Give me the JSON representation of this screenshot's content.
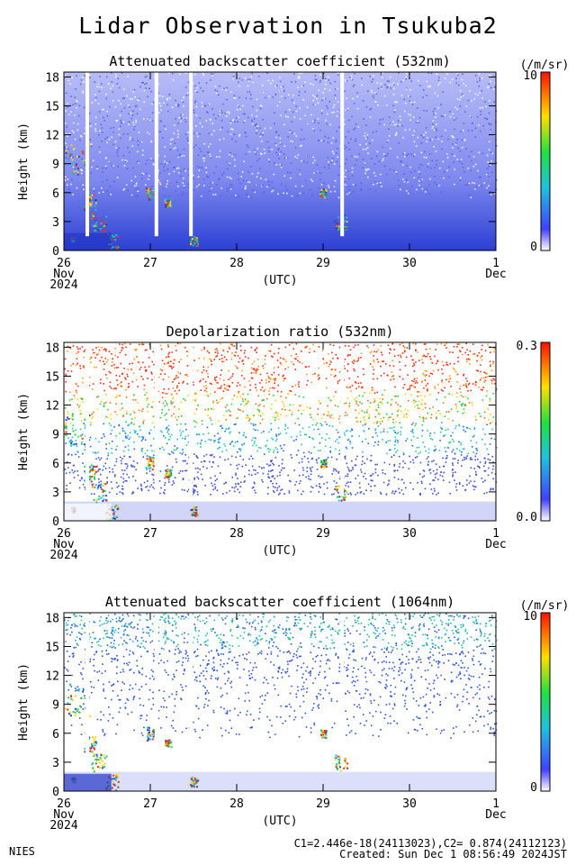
{
  "page": {
    "title": "Lidar Observation in Tsukuba2",
    "footer_org": "NIES",
    "footer_constants": "C1=2.446e-18(24113023),C2= 0.874(24112123)",
    "footer_created": "Created: Sun Dec  1 08:56:49 2024JST"
  },
  "chart_data": [
    {
      "type": "heatmap",
      "title": "Attenuated backscatter coefficient (532nm)",
      "xlabel": "(UTC)",
      "ylabel": "Height (km)",
      "x_ticks": [
        "26",
        "27",
        "28",
        "29",
        "30",
        "1"
      ],
      "x_sublabels": {
        "start_month": "Nov",
        "start_year": "2024",
        "end_month": "Dec"
      },
      "xlim": [
        "2024-11-26",
        "2024-12-01"
      ],
      "y_ticks": [
        0,
        3,
        6,
        9,
        12,
        15,
        18
      ],
      "ylim": [
        0,
        18.5
      ],
      "colorbar": {
        "label": "(/m/sr)",
        "min": "0",
        "max": "10",
        "scale": "log"
      },
      "colors": {
        "background": "#8c95f0",
        "clear": "#ffffff",
        "haze": "#3a4fd9",
        "cloud": "#ff2a10"
      }
    },
    {
      "type": "heatmap",
      "title": "Depolarization ratio (532nm)",
      "xlabel": "(UTC)",
      "ylabel": "Height (km)",
      "x_ticks": [
        "26",
        "27",
        "28",
        "29",
        "30",
        "1"
      ],
      "x_sublabels": {
        "start_month": "Nov",
        "start_year": "2024",
        "end_month": "Dec"
      },
      "xlim": [
        "2024-11-26",
        "2024-12-01"
      ],
      "y_ticks": [
        0,
        3,
        6,
        9,
        12,
        15,
        18
      ],
      "ylim": [
        0,
        18.5
      ],
      "colorbar": {
        "label": "",
        "min": "0.0",
        "max": "0.3",
        "scale": "linear"
      },
      "colors": {
        "background": "#ffffff",
        "haze": "#4a5be0",
        "cloud": "#ff2a10"
      }
    },
    {
      "type": "heatmap",
      "title": "Attenuated backscatter coefficient (1064nm)",
      "xlabel": "(UTC)",
      "ylabel": "Height (km)",
      "x_ticks": [
        "26",
        "27",
        "28",
        "29",
        "30",
        "1"
      ],
      "x_sublabels": {
        "start_month": "Nov",
        "start_year": "2024",
        "end_month": "Dec"
      },
      "xlim": [
        "2024-11-26",
        "2024-12-01"
      ],
      "y_ticks": [
        0,
        3,
        6,
        9,
        12,
        15,
        18
      ],
      "ylim": [
        0,
        18.5
      ],
      "colorbar": {
        "label": "(/m/sr)",
        "min": "0",
        "max": "10",
        "scale": "log"
      },
      "colors": {
        "background": "#ffffff",
        "noise": "#2a55d8",
        "cloud": "#ff2a10"
      }
    }
  ]
}
